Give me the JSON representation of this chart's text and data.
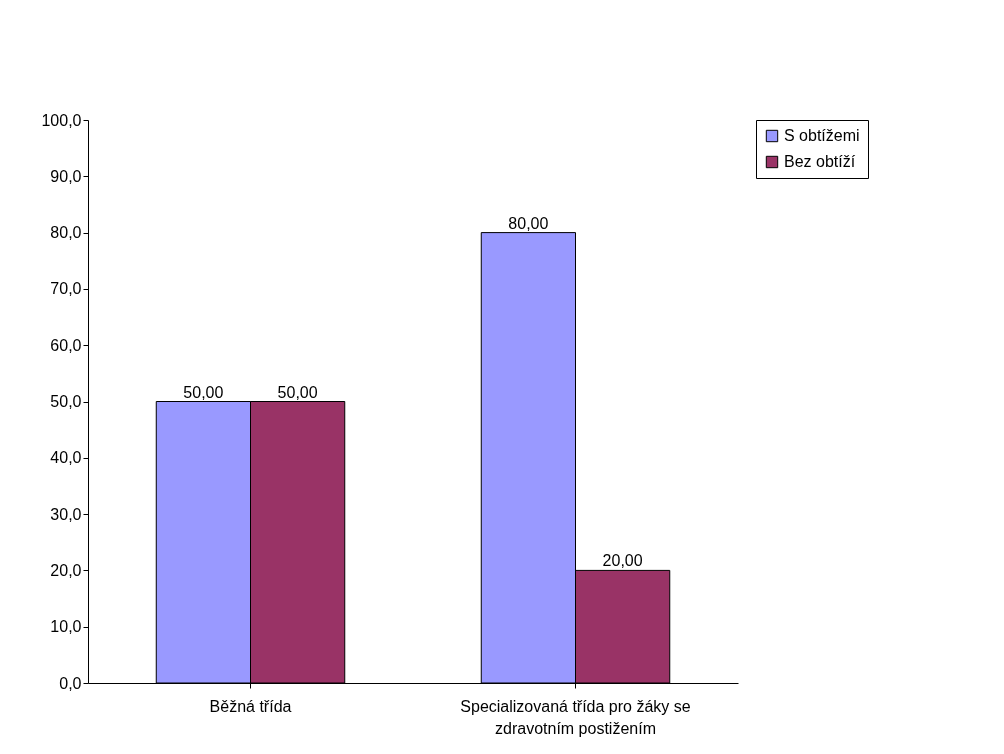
{
  "chart_data": {
    "type": "bar",
    "categories": [
      "Běžná třída",
      "Specializovaná třída pro žáky se zdravotním postižením"
    ],
    "series": [
      {
        "name": "S obtížemi",
        "color": "#9999ff",
        "values": [
          50,
          80
        ],
        "value_labels": [
          "50,00",
          "80,00"
        ]
      },
      {
        "name": "Bez obtíží",
        "color": "#993366",
        "values": [
          50,
          20
        ],
        "value_labels": [
          "50,00",
          "20,00"
        ]
      }
    ],
    "ylim": [
      0,
      100
    ],
    "yticks": [
      {
        "value": 0,
        "label": "0,0"
      },
      {
        "value": 10,
        "label": "10,0"
      },
      {
        "value": 20,
        "label": "20,0"
      },
      {
        "value": 30,
        "label": "30,0"
      },
      {
        "value": 40,
        "label": "40,0"
      },
      {
        "value": 50,
        "label": "50,0"
      },
      {
        "value": 60,
        "label": "60,0"
      },
      {
        "value": 70,
        "label": "70,0"
      },
      {
        "value": 80,
        "label": "80,0"
      },
      {
        "value": 90,
        "label": "90,0"
      },
      {
        "value": 100,
        "label": "100,0"
      }
    ],
    "grid": false,
    "legend": "right"
  }
}
